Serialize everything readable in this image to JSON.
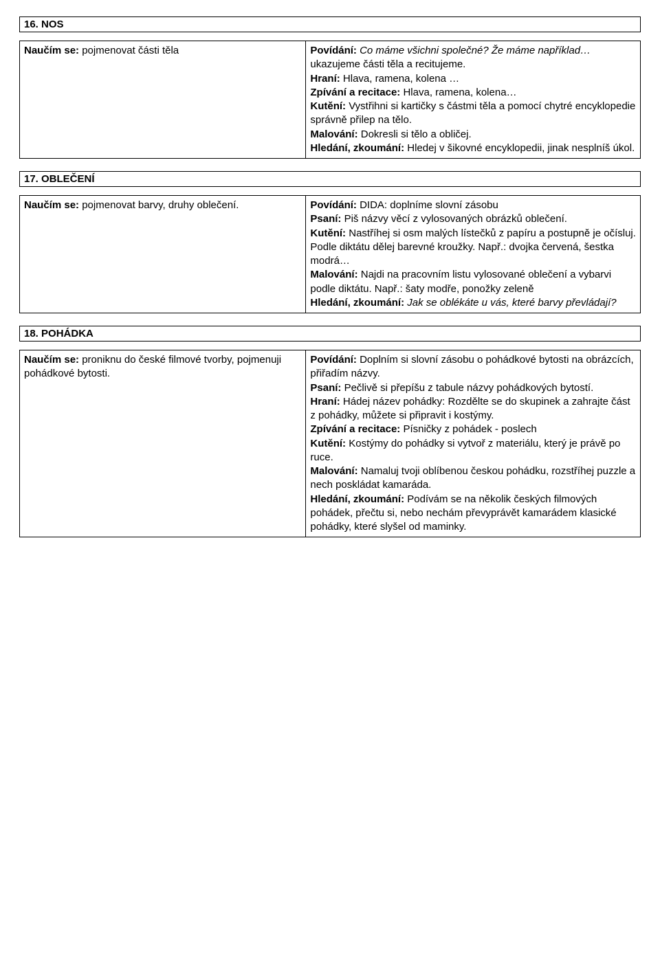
{
  "s16": {
    "title": "16. NOS",
    "left": {
      "naucim_label": "Naučím se:",
      "naucim_text": " pojmenovat části těla"
    },
    "right": {
      "povidani_label": "Povídání:",
      "povidani_text1_italic": " Co máme všichni společné? Že máme například… ",
      "povidani_text2": "ukazujeme části těla a recitujeme.",
      "hrani_label": "Hraní:",
      "hrani_text": " Hlava, ramena, kolena …",
      "zpivani_label": "Zpívání a recitace:",
      "zpivani_text": " Hlava, ramena, kolena…",
      "kuteni_label": "Kutění:",
      "kuteni_text": " Vystřihni si kartičky s částmi těla a pomocí chytré encyklopedie správně přilep na tělo.",
      "malovani_label": "Malování:",
      "malovani_text": " Dokresli si tělo a obličej.",
      "hledani_label": "Hledání, zkoumání:",
      "hledani_text": " Hledej v šikovné encyklopedii, jinak nesplníš úkol."
    }
  },
  "s17": {
    "title": "17. OBLEČENÍ",
    "left": {
      "naucim_label": "Naučím se:",
      "naucim_text": " pojmenovat barvy, druhy oblečení."
    },
    "right": {
      "povidani_label": "Povídání:",
      "povidani_text": " DIDA: doplníme slovní zásobu",
      "psani_label": "Psaní:",
      "psani_text": " Piš názvy věcí z vylosovaných obrázků oblečení.",
      "kuteni_label": "Kutění:",
      "kuteni_text": " Nastříhej si osm malých lístečků z papíru a postupně je očísluj. Podle diktátu dělej barevné kroužky. Např.: dvojka červená, šestka modrá…",
      "malovani_label": "Malování:",
      "malovani_text": " Najdi na pracovním listu vylosované oblečení a vybarvi podle diktátu. Např.: šaty modře, ponožky zeleně",
      "hledani_label": "Hledání, zkoumání:",
      "hledani_text_italic": " Jak se oblékáte u vás, které barvy převládají?"
    }
  },
  "s18": {
    "title": "18. POHÁDKA",
    "left": {
      "naucim_label": "Naučím se:",
      "naucim_text": " proniknu do české filmové tvorby, pojmenuji pohádkové bytosti."
    },
    "right": {
      "povidani_label": "Povídání:",
      "povidani_text": " Doplním si slovní zásobu o pohádkové bytosti na obrázcích, přiřadím názvy.",
      "psani_label": "Psaní:",
      "psani_text": " Pečlivě si přepíšu z tabule názvy pohádkových bytostí.",
      "hrani_label": "Hraní:",
      "hrani_text": " Hádej název pohádky: Rozdělte se do skupinek a zahrajte část z pohádky, můžete si připravit i kostýmy.",
      "zpivani_label": "Zpívání a recitace:",
      "zpivani_text": " Písničky z pohádek - poslech",
      "kuteni_label": "Kutění:",
      "kuteni_text": " Kostýmy do pohádky si vytvoř z materiálu, který je právě po ruce.",
      "malovani_label": "Malování:",
      "malovani_text": " Namaluj tvoji oblíbenou českou pohádku, rozstříhej puzzle a nech poskládat kamaráda.",
      "hledani_label": "Hledání, zkoumání:",
      "hledani_text": " Podívám se na několik českých filmových pohádek, přečtu si, nebo nechám převyprávět kamarádem klasické pohádky, které slyšel od maminky."
    }
  }
}
